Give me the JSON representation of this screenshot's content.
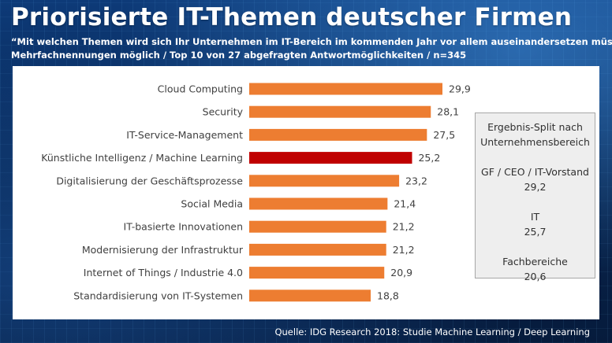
{
  "title": "Priorisierte IT-Themen deutscher Firmen",
  "subtitle": "“Mit welchen Themen wird sich Ihr Unternehmen im IT-Bereich im kommenden Jahr vor allem auseinandersetzen müssen“",
  "subtitle2": "Mehrfachnennungen möglich / Top 10 von 27 abgefragten Antwortmöglichkeiten / n=345",
  "source": "Quelle: IDG Research 2018: Studie Machine Learning / Deep Learning",
  "colors": {
    "bar": "#ed7d31",
    "highlight": "#c00000",
    "text": "#404040"
  },
  "chart_data": {
    "type": "bar",
    "orientation": "horizontal",
    "categories": [
      "Cloud Computing",
      "Security",
      "IT-Service-Management",
      "Künstliche Intelligenz / Machine Learning",
      "Digitalisierung der Geschäftsprozesse",
      "Social Media",
      "IT-basierte Innovationen",
      "Modernisierung der Infrastruktur",
      "Internet of Things / Industrie 4.0",
      "Standardisierung von IT-Systemen"
    ],
    "values": [
      29.9,
      28.1,
      27.5,
      25.2,
      23.2,
      21.4,
      21.2,
      21.2,
      20.9,
      18.8
    ],
    "value_labels": [
      "29,9",
      "28,1",
      "27,5",
      "25,2",
      "23,2",
      "21,4",
      "21,2",
      "21,2",
      "20,9",
      "18,8"
    ],
    "highlight_index": 3,
    "xlim": [
      0,
      29.9
    ],
    "grid": false,
    "legend": "none"
  },
  "split_box": {
    "heading_line1": "Ergebnis-Split nach",
    "heading_line2": "Unternehmensbereich",
    "groups": [
      {
        "label": "GF / CEO / IT-Vorstand",
        "value": "29,2"
      },
      {
        "label": "IT",
        "value": "25,7"
      },
      {
        "label": "Fachbereiche",
        "value": "20,6"
      }
    ]
  }
}
